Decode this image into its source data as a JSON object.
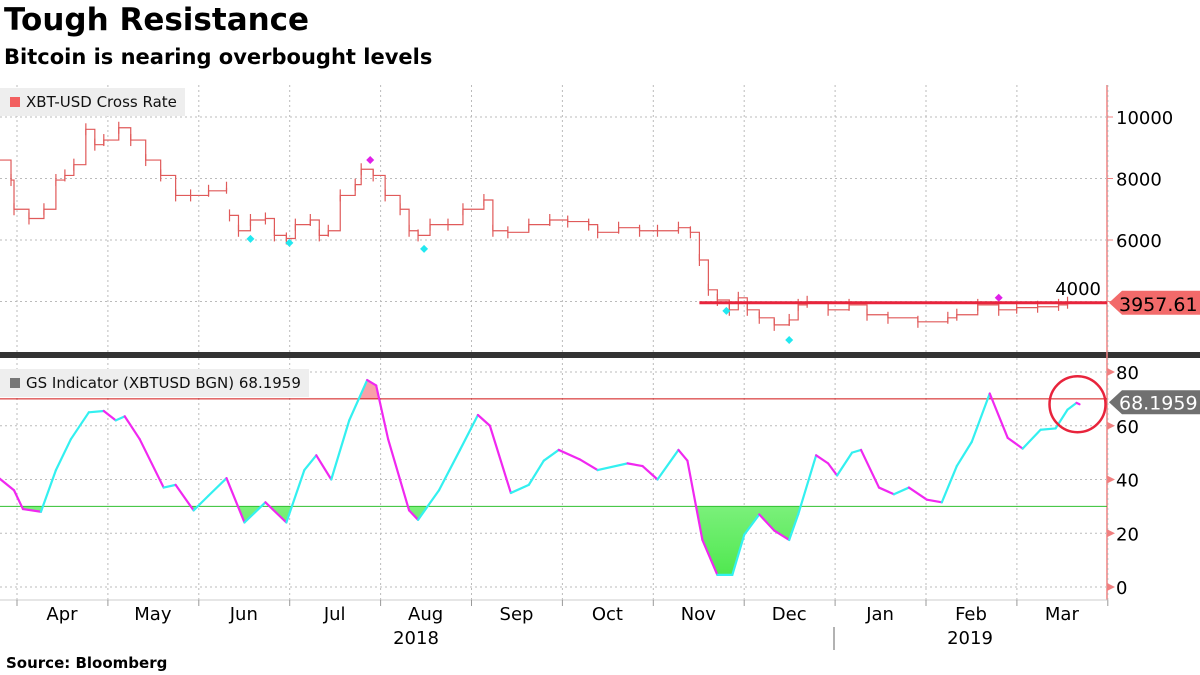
{
  "title": "Tough Resistance",
  "subtitle": "Bitcoin is nearing overbought levels",
  "source": "Source: Bloomberg",
  "chart_data": [
    {
      "type": "line",
      "name": "price-panel",
      "legend": "XBT-USD Cross Rate",
      "x_unit": "days since 2018-04-01",
      "color": "#e05a5a",
      "ylim": [
        2500,
        11000
      ],
      "yticks": [
        10000,
        8000,
        6000,
        4000
      ],
      "last_value_label": "3957.61",
      "resistance_level": 3957.61,
      "resistance_start_day": 228,
      "resistance_color": "#e8243c",
      "points": [
        [
          -6,
          8600
        ],
        [
          -2,
          7950
        ],
        [
          -1,
          7000
        ],
        [
          4,
          6700
        ],
        [
          9,
          7000
        ],
        [
          13,
          7950
        ],
        [
          16,
          8100
        ],
        [
          19,
          8450
        ],
        [
          23,
          9600
        ],
        [
          26,
          9100
        ],
        [
          29,
          9250
        ],
        [
          34,
          9650
        ],
        [
          38,
          9250
        ],
        [
          43,
          8600
        ],
        [
          48,
          8100
        ],
        [
          53,
          7450
        ],
        [
          58,
          7450
        ],
        [
          64,
          7600
        ],
        [
          70,
          7700
        ],
        null,
        [
          71,
          6800
        ],
        [
          74,
          6300
        ],
        [
          78,
          6650
        ],
        [
          83,
          6700
        ],
        [
          86,
          6150
        ],
        [
          90,
          6050
        ],
        [
          93,
          6500
        ],
        [
          98,
          6650
        ],
        [
          101,
          6150
        ],
        [
          104,
          6300
        ],
        [
          108,
          7450
        ],
        [
          113,
          7800
        ],
        [
          115,
          8300
        ],
        [
          119,
          8100
        ],
        [
          123,
          7450
        ],
        [
          128,
          7000
        ],
        [
          131,
          6300
        ],
        [
          134,
          6150
        ],
        [
          138,
          6500
        ],
        [
          144,
          6500
        ],
        [
          149,
          7000
        ],
        [
          156,
          7300
        ],
        [
          159,
          6300
        ],
        [
          164,
          6250
        ],
        [
          171,
          6500
        ],
        [
          178,
          6650
        ],
        [
          184,
          6600
        ],
        [
          191,
          6500
        ],
        [
          194,
          6250
        ],
        [
          201,
          6400
        ],
        [
          208,
          6300
        ],
        [
          214,
          6300
        ],
        [
          221,
          6400
        ],
        [
          225,
          6250
        ],
        [
          228,
          5350
        ],
        [
          231,
          4380
        ],
        [
          234,
          4050
        ],
        [
          238,
          3730
        ],
        [
          241,
          4120
        ],
        [
          244,
          3730
        ],
        [
          248,
          3470
        ],
        [
          253,
          3240
        ],
        [
          258,
          3400
        ],
        [
          261,
          3890
        ],
        [
          264,
          3990
        ],
        [
          271,
          3730
        ],
        [
          278,
          3890
        ],
        [
          284,
          3570
        ],
        [
          291,
          3470
        ],
        [
          301,
          3340
        ],
        [
          311,
          3470
        ],
        [
          314,
          3570
        ],
        [
          321,
          3890
        ],
        [
          328,
          3730
        ],
        [
          334,
          3800
        ],
        [
          341,
          3830
        ],
        [
          348,
          3890
        ],
        [
          351,
          3960
        ]
      ],
      "buy_signals": [
        [
          78,
          6035
        ],
        [
          91,
          5905
        ],
        [
          136,
          5710
        ],
        [
          237,
          3695
        ],
        [
          258,
          2750
        ]
      ],
      "sell_signals": [
        [
          118,
          8600
        ],
        [
          328,
          4120
        ]
      ]
    },
    {
      "type": "line",
      "name": "indicator-panel",
      "legend": "GS Indicator (XBTUSD BGN) 68.1959",
      "x_unit": "days since 2018-04-01",
      "rising_color": "#33f0f0",
      "falling_color": "#f028f0",
      "ylim": [
        -3,
        83
      ],
      "yticks": [
        80,
        60,
        40,
        20,
        0
      ],
      "overbought": 70,
      "oversold": 30,
      "last_value_label": "68.1959",
      "points": [
        [
          -6,
          40.5
        ],
        [
          -1,
          36
        ],
        [
          2,
          29
        ],
        [
          8,
          28
        ],
        [
          13,
          43.5
        ],
        [
          18,
          55
        ],
        [
          24,
          65
        ],
        [
          29,
          65.5
        ],
        [
          33,
          62
        ],
        [
          36,
          63.5
        ],
        [
          41,
          55
        ],
        [
          49,
          37
        ],
        [
          53,
          38
        ],
        [
          59,
          28.5
        ],
        [
          64,
          34
        ],
        [
          70,
          40.5
        ],
        [
          76,
          24
        ],
        [
          83,
          31.5
        ],
        [
          90,
          24
        ],
        [
          96,
          43.5
        ],
        [
          100,
          49
        ],
        [
          105,
          40
        ],
        [
          111,
          62
        ],
        [
          117,
          77
        ],
        [
          120,
          75
        ],
        [
          124,
          55
        ],
        [
          131,
          28.5
        ],
        [
          134,
          25
        ],
        [
          141,
          36
        ],
        [
          148,
          51
        ],
        [
          154,
          64
        ],
        [
          158,
          60
        ],
        [
          165,
          35
        ],
        [
          171,
          38
        ],
        [
          176,
          47
        ],
        [
          181,
          51
        ],
        [
          188,
          47.5
        ],
        [
          194,
          43.5
        ],
        [
          204,
          46
        ],
        [
          209,
          45
        ],
        [
          214,
          40
        ],
        [
          221,
          51
        ],
        [
          224,
          47
        ],
        [
          229,
          17.5
        ],
        [
          234,
          4.5
        ],
        [
          239,
          4.5
        ],
        [
          243,
          19.5
        ],
        [
          248,
          27
        ],
        [
          253,
          21
        ],
        [
          258,
          17.5
        ],
        [
          261,
          27
        ],
        [
          267,
          49
        ],
        [
          271,
          46
        ],
        [
          274,
          41.5
        ],
        [
          279,
          50
        ],
        [
          282,
          51
        ],
        [
          288,
          37
        ],
        [
          293,
          34.5
        ],
        [
          298,
          37
        ],
        [
          304,
          32.5
        ],
        [
          309,
          31.5
        ],
        [
          314,
          45
        ],
        [
          319,
          54
        ],
        [
          325,
          72
        ],
        [
          331,
          55.5
        ],
        [
          336,
          51.5
        ],
        [
          342,
          58.5
        ],
        [
          347,
          59
        ],
        [
          351,
          66
        ],
        [
          354,
          68.5
        ],
        [
          355,
          68
        ]
      ]
    }
  ],
  "x_axis": {
    "months": [
      "Apr",
      "May",
      "Jun",
      "Jul",
      "Aug",
      "Sep",
      "Oct",
      "Nov",
      "Dec",
      "Jan",
      "Feb",
      "Mar"
    ],
    "years": [
      "2018",
      "2019"
    ]
  }
}
